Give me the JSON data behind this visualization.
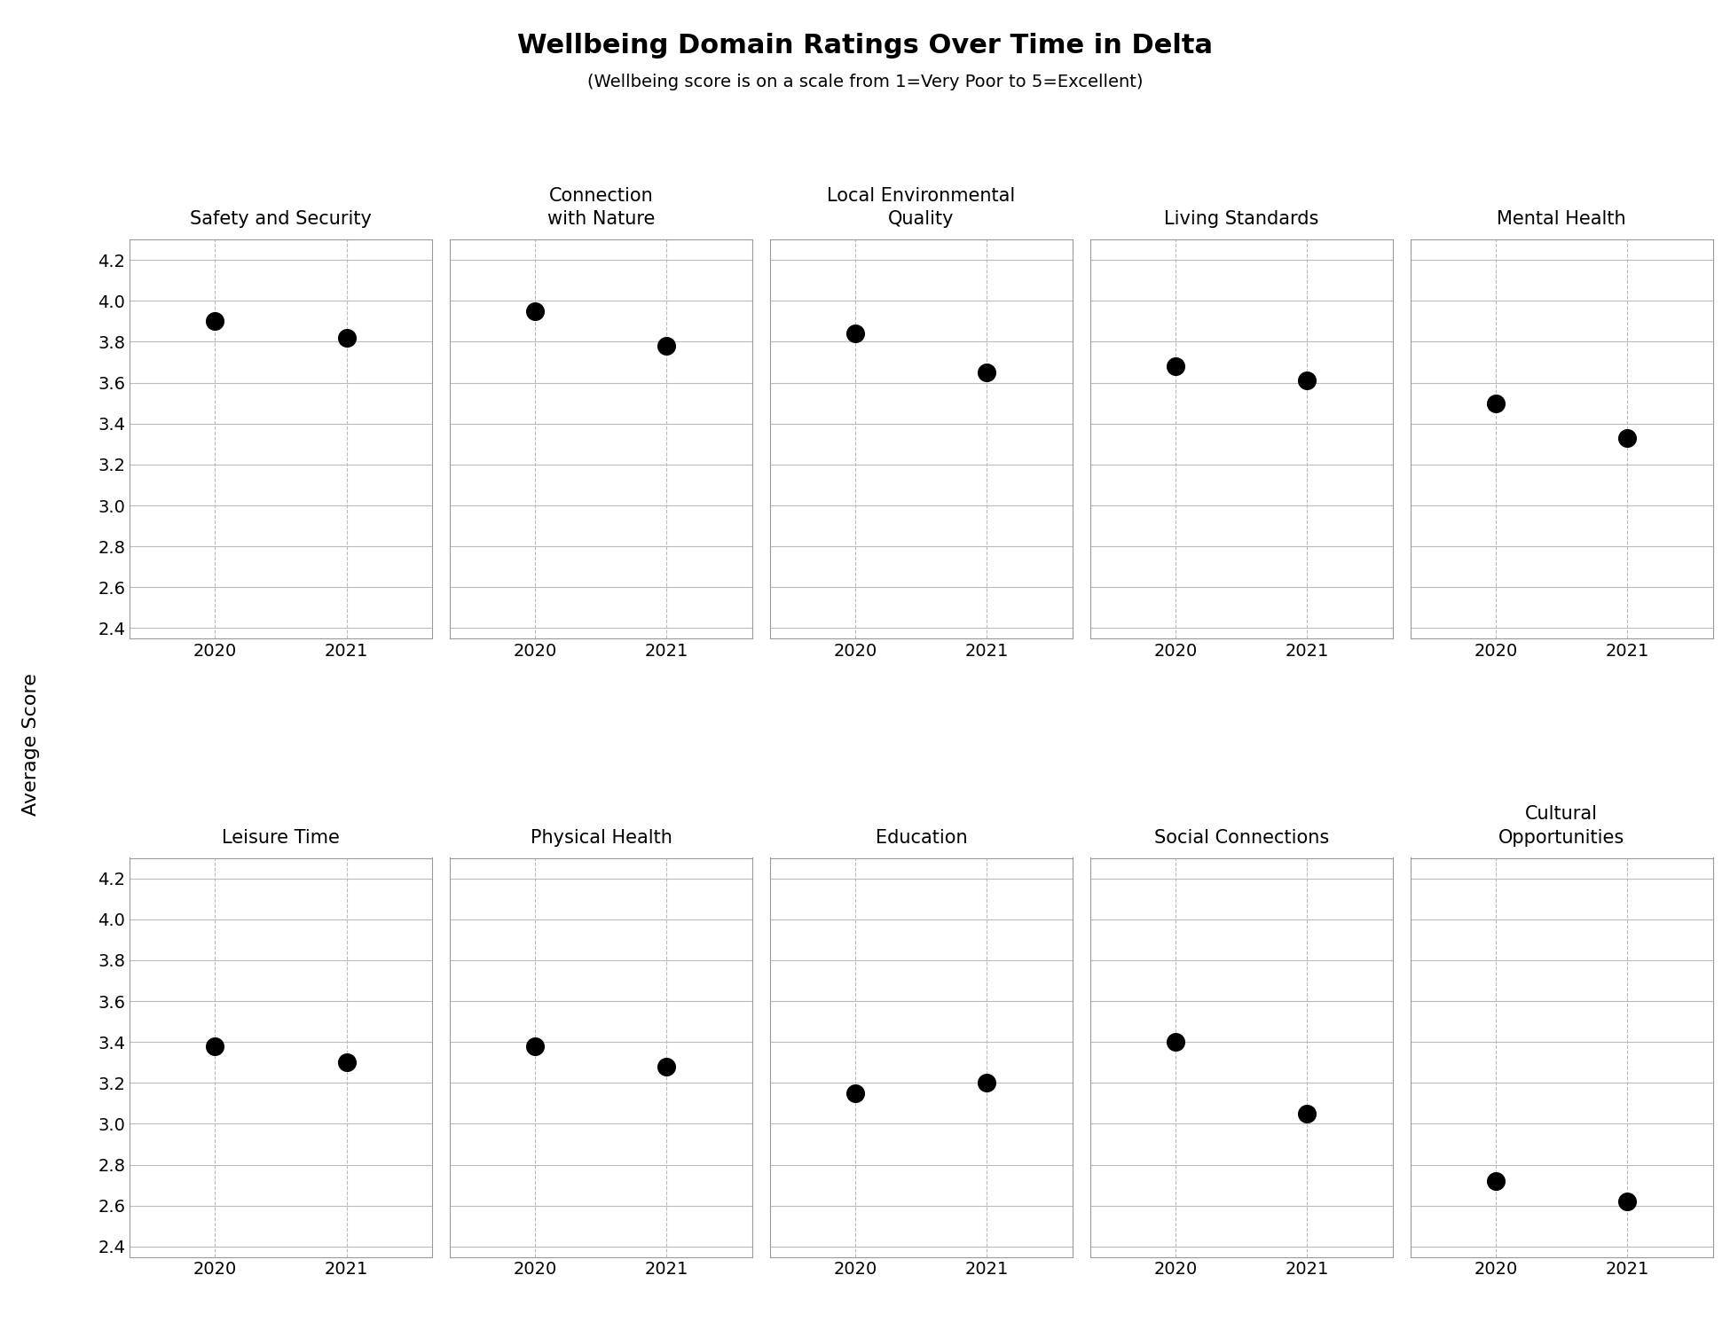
{
  "title": "Wellbeing Domain Ratings Over Time in Delta",
  "subtitle": "(Wellbeing score is on a scale from 1=Very Poor to 5=Excellent)",
  "ylabel": "Average Score",
  "categories": [
    {
      "name": "Safety and Security",
      "row": 0,
      "col": 0,
      "v2020": 3.9,
      "v2021": 3.82
    },
    {
      "name": "Connection\nwith Nature",
      "row": 0,
      "col": 1,
      "v2020": 3.95,
      "v2021": 3.78
    },
    {
      "name": "Local Environmental\nQuality",
      "row": 0,
      "col": 2,
      "v2020": 3.84,
      "v2021": 3.65
    },
    {
      "name": "Living Standards",
      "row": 0,
      "col": 3,
      "v2020": 3.68,
      "v2021": 3.61
    },
    {
      "name": "Mental Health",
      "row": 0,
      "col": 4,
      "v2020": 3.5,
      "v2021": 3.33
    },
    {
      "name": "Leisure Time",
      "row": 1,
      "col": 0,
      "v2020": 3.38,
      "v2021": 3.3
    },
    {
      "name": "Physical Health",
      "row": 1,
      "col": 1,
      "v2020": 3.38,
      "v2021": 3.28
    },
    {
      "name": "Education",
      "row": 1,
      "col": 2,
      "v2020": 3.15,
      "v2021": 3.2
    },
    {
      "name": "Social Connections",
      "row": 1,
      "col": 3,
      "v2020": 3.4,
      "v2021": 3.05
    },
    {
      "name": "Cultural\nOpportunities",
      "row": 1,
      "col": 4,
      "v2020": 2.72,
      "v2021": 2.62
    }
  ],
  "ylim": [
    2.35,
    4.3
  ],
  "yticks": [
    2.4,
    2.6,
    2.8,
    3.0,
    3.2,
    3.4,
    3.6,
    3.8,
    4.0,
    4.2
  ],
  "xticks": [
    2020,
    2021
  ],
  "dot_color": "#000000",
  "dot_size": 200,
  "grid_color": "#bbbbbb",
  "background_color": "#ffffff",
  "title_fontsize": 22,
  "subtitle_fontsize": 14,
  "category_fontsize": 15,
  "tick_fontsize": 14,
  "ylabel_fontsize": 16
}
